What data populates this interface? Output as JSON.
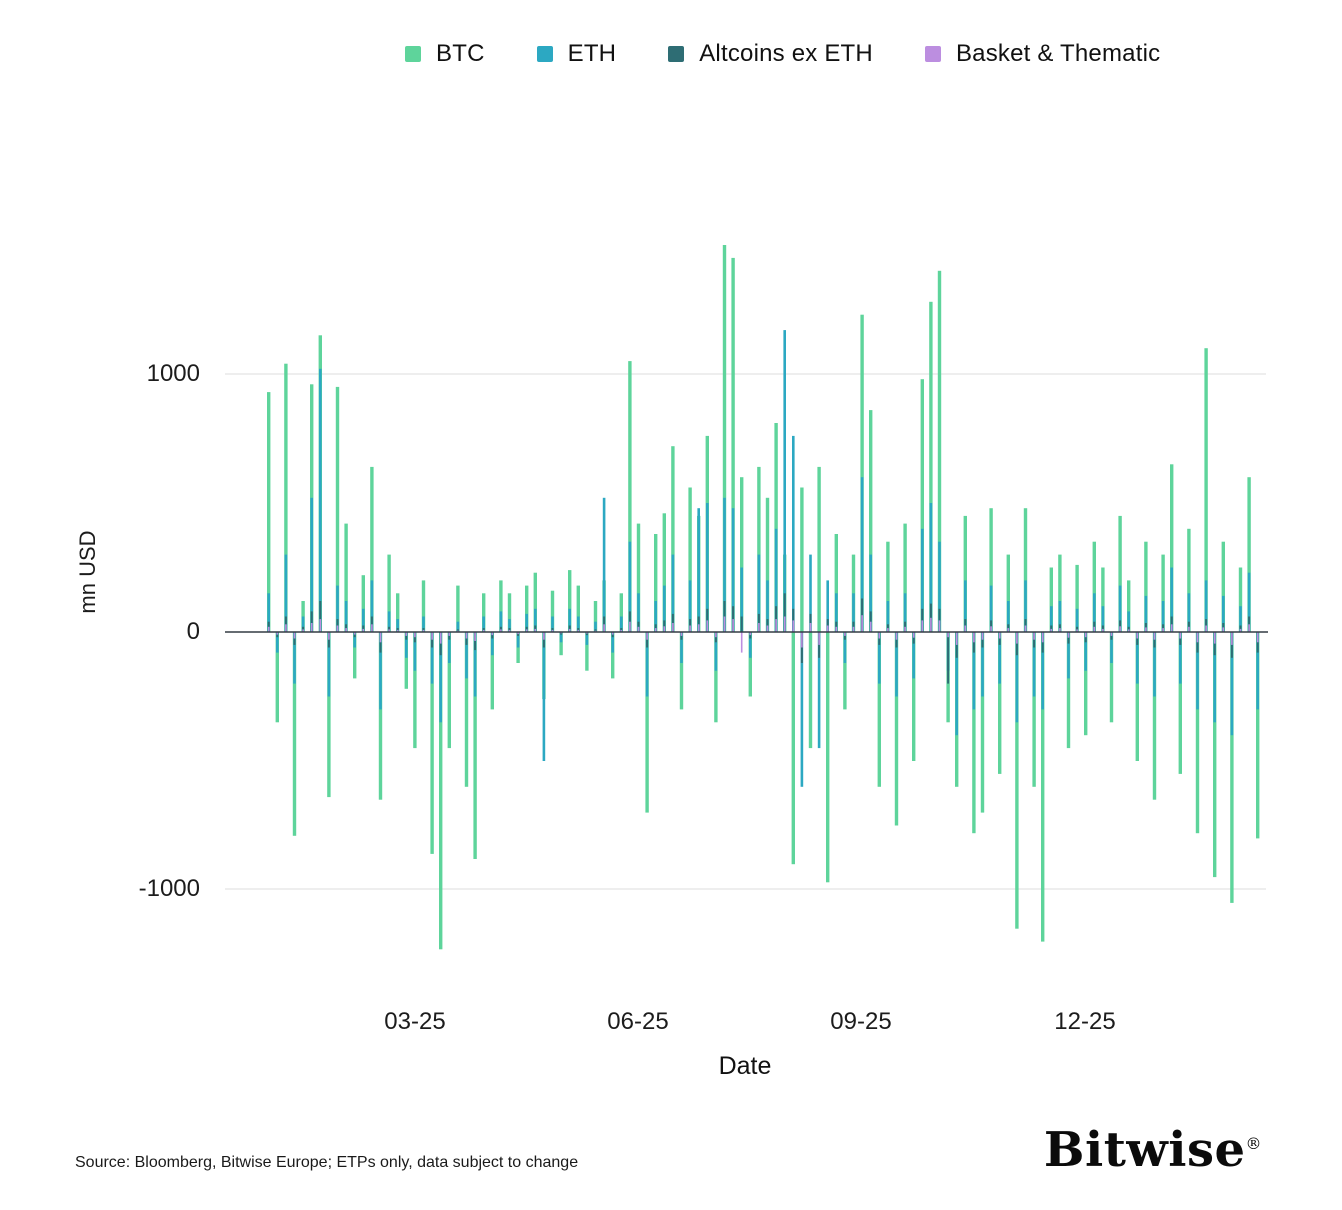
{
  "chart_data": {
    "type": "bar",
    "title": "",
    "xlabel": "Date",
    "ylabel": "mn USD",
    "ylim": [
      -1300,
      1600
    ],
    "grid": "horizontal gridlines at 1000 and -1000, dark zero axis line",
    "legend_position": "top-center",
    "yticks": [
      {
        "value": 1000,
        "label": "1000"
      },
      {
        "value": 0,
        "label": "0"
      },
      {
        "value": -1000,
        "label": "-1000"
      }
    ],
    "xticks": [
      {
        "index": 21,
        "label": "03-25"
      },
      {
        "index": 47,
        "label": "06-25"
      },
      {
        "index": 73,
        "label": "09-25"
      },
      {
        "index": 99,
        "label": "12-25"
      }
    ],
    "x_description": "daily ETP net flows, approx Jan 2025 through Feb 2026, 120 sampled time points",
    "series": [
      {
        "name": "BTC",
        "color": "#5ed49b",
        "values": [
          0,
          0,
          0,
          0,
          930,
          -350,
          1040,
          -790,
          120,
          960,
          1150,
          -640,
          950,
          420,
          -180,
          220,
          640,
          -650,
          300,
          150,
          -220,
          -450,
          200,
          -860,
          -1230,
          -450,
          180,
          -600,
          -880,
          150,
          -300,
          200,
          150,
          -120,
          180,
          230,
          -260,
          160,
          -90,
          240,
          180,
          -150,
          120,
          200,
          -180,
          150,
          1050,
          420,
          -700,
          380,
          460,
          720,
          -300,
          560,
          450,
          760,
          -350,
          1500,
          1450,
          600,
          -250,
          640,
          520,
          810,
          300,
          -900,
          560,
          -450,
          640,
          -970,
          380,
          -300,
          300,
          1230,
          860,
          -600,
          350,
          -750,
          420,
          -500,
          980,
          1280,
          1400,
          -350,
          -600,
          450,
          -780,
          -700,
          480,
          -550,
          300,
          -1150,
          480,
          -600,
          -1200,
          250,
          300,
          -450,
          260,
          -400,
          350,
          250,
          -350,
          450,
          200,
          -500,
          350,
          -650,
          300,
          650,
          -550,
          400,
          -780,
          1100,
          -950,
          350,
          -1050,
          250,
          600,
          -800
        ]
      },
      {
        "name": "ETH",
        "color": "#2ca8c2",
        "values": [
          0,
          0,
          0,
          0,
          150,
          -80,
          300,
          -200,
          60,
          520,
          1020,
          -250,
          180,
          120,
          -60,
          90,
          200,
          -300,
          80,
          50,
          -100,
          -150,
          60,
          -200,
          -350,
          -120,
          40,
          -180,
          -250,
          60,
          -90,
          80,
          50,
          -60,
          70,
          90,
          -500,
          60,
          -40,
          90,
          60,
          -50,
          40,
          520,
          -80,
          60,
          350,
          150,
          -250,
          120,
          180,
          300,
          -120,
          200,
          480,
          500,
          -150,
          520,
          480,
          250,
          -100,
          300,
          200,
          400,
          1170,
          760,
          -600,
          300,
          -450,
          200,
          150,
          -120,
          150,
          600,
          300,
          -200,
          120,
          -250,
          150,
          -180,
          400,
          500,
          350,
          -150,
          -400,
          200,
          -300,
          -250,
          180,
          -200,
          120,
          -350,
          200,
          -250,
          -300,
          100,
          120,
          -180,
          90,
          -150,
          150,
          100,
          -120,
          180,
          80,
          -200,
          140,
          -250,
          120,
          250,
          -200,
          150,
          -300,
          200,
          -350,
          140,
          -400,
          100,
          230,
          -300
        ]
      },
      {
        "name": "Altcoins ex ETH",
        "color": "#2e6d74",
        "values": [
          0,
          0,
          0,
          0,
          40,
          -20,
          60,
          -50,
          20,
          80,
          120,
          -60,
          50,
          30,
          -20,
          25,
          60,
          -80,
          20,
          15,
          -30,
          -40,
          15,
          -60,
          -90,
          -30,
          10,
          -50,
          -70,
          15,
          -25,
          20,
          15,
          -15,
          20,
          25,
          -60,
          15,
          -10,
          25,
          15,
          -12,
          10,
          60,
          -20,
          15,
          80,
          40,
          -60,
          30,
          45,
          70,
          -30,
          50,
          60,
          90,
          -40,
          120,
          100,
          60,
          -25,
          70,
          50,
          100,
          150,
          90,
          -120,
          70,
          -100,
          50,
          40,
          -30,
          40,
          130,
          80,
          -50,
          30,
          -60,
          40,
          -45,
          90,
          110,
          90,
          -200,
          -100,
          50,
          -80,
          -60,
          45,
          -50,
          30,
          -90,
          50,
          -60,
          -80,
          25,
          30,
          -45,
          20,
          -40,
          40,
          25,
          -30,
          45,
          20,
          -50,
          35,
          -60,
          30,
          60,
          -50,
          40,
          -80,
          50,
          -90,
          35,
          -100,
          25,
          60,
          -80
        ]
      },
      {
        "name": "Basket & Thematic",
        "color": "#bc8ee0",
        "values": [
          0,
          0,
          0,
          0,
          20,
          -10,
          30,
          -25,
          10,
          35,
          50,
          -30,
          25,
          15,
          -10,
          12,
          30,
          -40,
          10,
          8,
          -15,
          -20,
          8,
          -30,
          -45,
          -15,
          5,
          -25,
          -35,
          8,
          -12,
          10,
          8,
          -8,
          10,
          12,
          -30,
          8,
          -5,
          12,
          8,
          -6,
          5,
          30,
          -10,
          8,
          40,
          20,
          -30,
          15,
          22,
          35,
          -15,
          25,
          30,
          45,
          -20,
          60,
          50,
          -80,
          -12,
          35,
          25,
          50,
          60,
          45,
          -60,
          35,
          -50,
          25,
          20,
          -15,
          20,
          65,
          40,
          -25,
          15,
          -30,
          20,
          -22,
          45,
          55,
          45,
          -20,
          -50,
          25,
          -40,
          -30,
          22,
          -25,
          15,
          -45,
          25,
          -30,
          -40,
          12,
          15,
          -22,
          10,
          -20,
          20,
          12,
          -15,
          22,
          10,
          -25,
          18,
          -30,
          15,
          30,
          -25,
          20,
          -40,
          25,
          -45,
          18,
          -50,
          12,
          30,
          -40
        ]
      }
    ]
  },
  "footer": {
    "source": "Source: Bloomberg, Bitwise Europe; ETPs only, data subject to change",
    "logo": "Bitwise",
    "logo_mark": "®"
  }
}
